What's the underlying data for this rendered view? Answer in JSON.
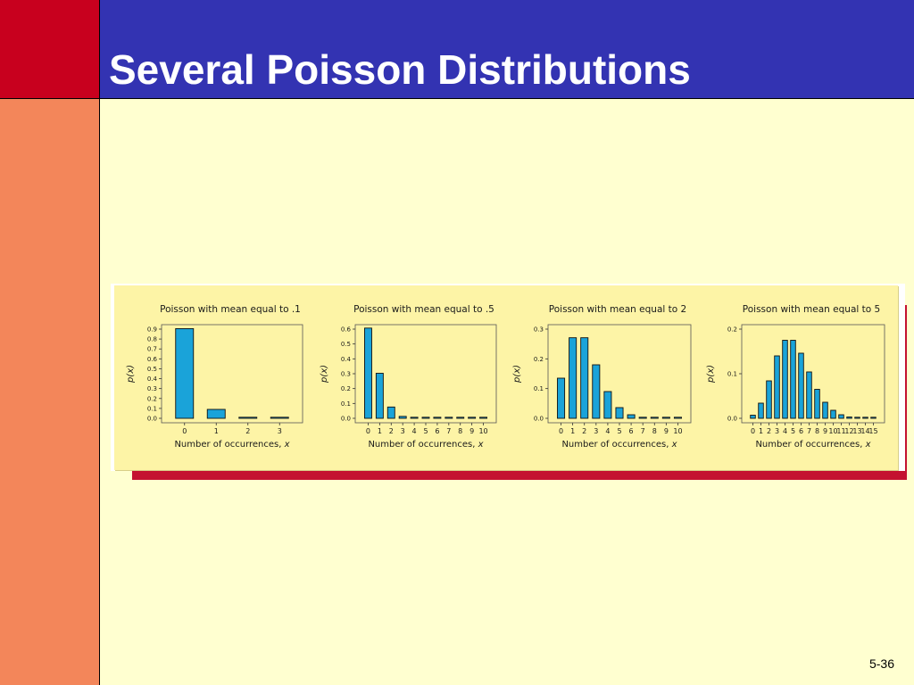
{
  "slide": {
    "title": "Several Poisson Distributions",
    "page_number": "5-36"
  },
  "colors": {
    "title_bar": "#3333b2",
    "corner_block": "#c8001e",
    "side_bar": "#f3865a",
    "background": "#ffffd0",
    "figure_panel": "#fdf4a6",
    "figure_shadow": "#c41230",
    "bar_fill": "#1aa3d9"
  },
  "chart_data": [
    {
      "type": "bar",
      "title": "Poisson with mean equal to .1",
      "ylabel": "p(x)",
      "xlabel": "Number of occurrences, x",
      "ylim": [
        0,
        0.9
      ],
      "yticks": [
        "0.0",
        "0.1",
        "0.2",
        "0.3",
        "0.4",
        "0.5",
        "0.6",
        "0.7",
        "0.8",
        "0.9"
      ],
      "categories": [
        "0",
        "1",
        "2",
        "3"
      ],
      "values": [
        0.905,
        0.09,
        0.005,
        0.0002
      ]
    },
    {
      "type": "bar",
      "title": "Poisson with mean equal to .5",
      "ylabel": "p(x)",
      "xlabel": "Number of occurrences, x",
      "ylim": [
        0,
        0.6
      ],
      "yticks": [
        "0.0",
        "0.1",
        "0.2",
        "0.3",
        "0.4",
        "0.5",
        "0.6"
      ],
      "categories": [
        "0",
        "1",
        "2",
        "3",
        "4",
        "5",
        "6",
        "7",
        "8",
        "9",
        "10"
      ],
      "values": [
        0.607,
        0.303,
        0.076,
        0.013,
        0.002,
        0.0,
        0.0,
        0.0,
        0.0,
        0.0,
        0.0
      ]
    },
    {
      "type": "bar",
      "title": "Poisson with mean equal to 2",
      "ylabel": "p(x)",
      "xlabel": "Number of occurrences, x",
      "ylim": [
        0,
        0.3
      ],
      "yticks": [
        "0.0",
        "0.1",
        "0.2",
        "0.3"
      ],
      "categories": [
        "0",
        "1",
        "2",
        "3",
        "4",
        "5",
        "6",
        "7",
        "8",
        "9",
        "10"
      ],
      "values": [
        0.135,
        0.271,
        0.271,
        0.18,
        0.09,
        0.036,
        0.012,
        0.003,
        0.001,
        0.0,
        0.0
      ]
    },
    {
      "type": "bar",
      "title": "Poisson with mean equal to 5",
      "ylabel": "p(x)",
      "xlabel": "Number of occurrences, x",
      "ylim": [
        0,
        0.2
      ],
      "yticks": [
        "0.0",
        "0.1",
        "0.2"
      ],
      "categories": [
        "0",
        "1",
        "2",
        "3",
        "4",
        "5",
        "6",
        "7",
        "8",
        "9",
        "10",
        "11",
        "12",
        "13",
        "14",
        "15"
      ],
      "values": [
        0.007,
        0.034,
        0.084,
        0.14,
        0.175,
        0.175,
        0.146,
        0.104,
        0.065,
        0.036,
        0.018,
        0.008,
        0.003,
        0.001,
        0.0,
        0.0
      ]
    }
  ]
}
